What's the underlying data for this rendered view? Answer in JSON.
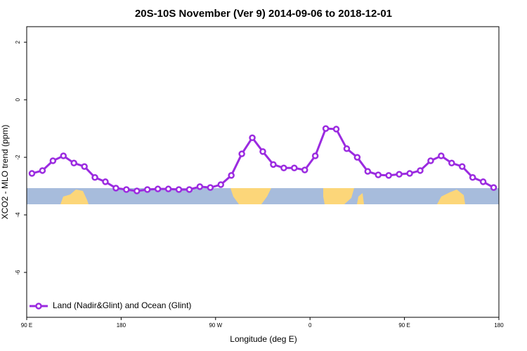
{
  "chart_data": {
    "type": "line",
    "title": "20S-10S November (Ver 9)   2014-09-06 to 2018-12-01",
    "x_label": "Longitude (deg E)",
    "y_label": "XCO2 - MLO trend (ppm)",
    "x": [
      95,
      105,
      115,
      125,
      135,
      145,
      155,
      165,
      175,
      185,
      195,
      205,
      215,
      225,
      235,
      245,
      255,
      265,
      275,
      285,
      295,
      305,
      315,
      325,
      335,
      345,
      355,
      365,
      375,
      385,
      395,
      405,
      415,
      425,
      435,
      445,
      455,
      465,
      475,
      485,
      495,
      505,
      515,
      525,
      535
    ],
    "series": [
      {
        "name": "Land (Nadir&Glint) and Ocean (Glint)",
        "color": "#9b2be0",
        "values": [
          -2.56,
          -2.46,
          -2.12,
          -1.95,
          -2.2,
          -2.32,
          -2.7,
          -2.85,
          -3.07,
          -3.12,
          -3.17,
          -3.12,
          -3.1,
          -3.1,
          -3.12,
          -3.12,
          -3.02,
          -3.05,
          -2.95,
          -2.63,
          -1.88,
          -1.32,
          -1.8,
          -2.25,
          -2.37,
          -2.37,
          -2.44,
          -1.95,
          -1.0,
          -1.02,
          -1.7,
          -2.0,
          -2.49,
          -2.61,
          -2.63,
          -2.59,
          -2.56,
          -2.46,
          -2.12,
          -1.95,
          -2.2,
          -2.32,
          -2.7,
          -2.85,
          -3.05
        ]
      }
    ],
    "xlim": [
      90,
      540
    ],
    "xticks": [
      {
        "value": 90,
        "label": "90 E"
      },
      180,
      {
        "value": 270,
        "label": "90 W"
      },
      {
        "value": 360,
        "label": "0"
      },
      {
        "value": 450,
        "label": "90 E"
      },
      {
        "value": 540,
        "label": "180"
      }
    ],
    "ylim": [
      -7.56,
      2.54
    ],
    "yticks": [
      -6,
      -4,
      -2,
      0,
      2
    ],
    "legend": "bottom-left"
  }
}
